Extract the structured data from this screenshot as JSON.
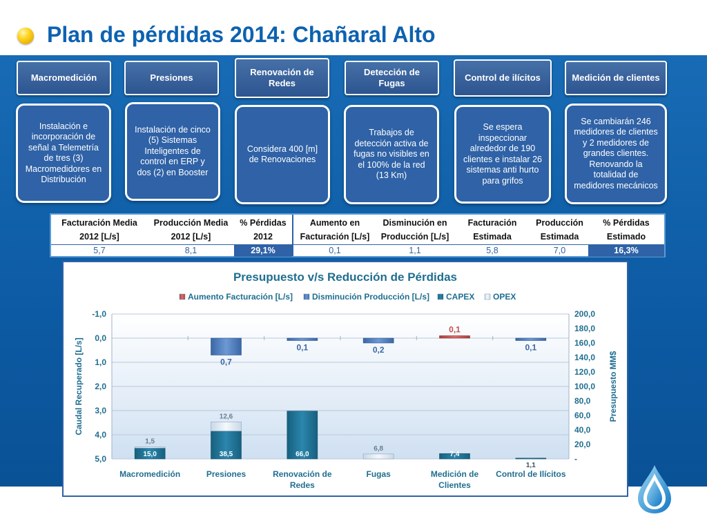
{
  "title": "Plan de pérdidas 2014: Chañaral Alto",
  "columns": [
    {
      "header": "Macromedición",
      "desc": "Instalación e incorporación de señal a Telemetría de tres (3) Macromedidores en Distribución"
    },
    {
      "header": "Presiones",
      "desc": "Instalación de cinco (5) Sistemas Inteligentes de control en ERP y dos (2) en Booster"
    },
    {
      "header": "Renovación de Redes",
      "desc": "Considera 400 [m] de Renovaciones"
    },
    {
      "header": "Detección de Fugas",
      "desc": "Trabajos de detección activa de fugas no visibles en el 100% de la red (13 Km)"
    },
    {
      "header": "Control de ilícitos",
      "desc": "Se espera inspeccionar alrededor de 190 clientes e instalar 26 sistemas anti hurto para grifos"
    },
    {
      "header": "Medición de clientes",
      "desc": "Se cambiarán 246 medidores de clientes y 2 medidores de grandes clientes. Renovando la totalidad de medidores mecánicos"
    }
  ],
  "table": {
    "headers": [
      [
        "Facturación Media",
        "2012 [L/s]"
      ],
      [
        "Producción Media",
        "2012 [L/s]"
      ],
      [
        "% Pérdidas",
        "2012"
      ],
      [
        "Aumento en",
        "Facturación [L/s]"
      ],
      [
        "Disminución en",
        "Producción [L/s]"
      ],
      [
        "Facturación",
        "Estimada"
      ],
      [
        "Producción",
        "Estimada"
      ],
      [
        "% Pérdidas",
        "Estimado"
      ]
    ],
    "values": [
      "5,7",
      "8,1",
      "29,1%",
      "0,1",
      "1,1",
      "5,8",
      "7,0",
      "16,3%"
    ]
  },
  "chart_data": {
    "type": "bar",
    "title": "Presupuesto v/s Reducción de Pérdidas",
    "categories": [
      "Macromedición",
      "Presiones",
      "Renovación de Redes",
      "Fugas",
      "Medición de Clientes",
      "Control de Ilícitos"
    ],
    "series": [
      {
        "name": "Aumento Facturación [L/s]",
        "axis": "left",
        "values": [
          null,
          null,
          null,
          null,
          0.1,
          null
        ],
        "labels": [
          "",
          "",
          "",
          "",
          "0,1",
          ""
        ]
      },
      {
        "name": "Disminución Producción [L/s]",
        "axis": "left",
        "values": [
          null,
          0.7,
          0.1,
          0.2,
          null,
          0.1
        ],
        "labels": [
          "",
          "0,7",
          "0,1",
          "0,2",
          "",
          "0,1"
        ]
      },
      {
        "name": "CAPEX",
        "axis": "right",
        "values": [
          15.0,
          38.5,
          66.0,
          null,
          7.4,
          1.1
        ],
        "labels": [
          "15,0",
          "38,5",
          "66,0",
          "",
          "7,4",
          "1,1"
        ]
      },
      {
        "name": "OPEX",
        "axis": "right",
        "values": [
          1.5,
          12.6,
          null,
          6.8,
          null,
          null
        ],
        "labels": [
          "1,5",
          "12,6",
          "",
          "6,8",
          "",
          ""
        ]
      }
    ],
    "ylabel": "Caudal Recuperado [L/s]",
    "y2label": "Presupuesto MM$",
    "ylim": [
      -1,
      5
    ],
    "y_inverted": true,
    "y2lim": [
      0,
      200
    ],
    "yticks": [
      "-1,0",
      "0,0",
      "1,0",
      "2,0",
      "3,0",
      "4,0",
      "5,0"
    ],
    "y2ticks": [
      "-",
      "20,0",
      "40,0",
      "60,0",
      "80,0",
      "100,0",
      "120,0",
      "140,0",
      "160,0",
      "180,0",
      "200,0"
    ],
    "legend": "top",
    "grid": true,
    "colors": {
      "aumento": "#c0504d",
      "disminucion": "#4f81bd",
      "capex": "#1f6e90",
      "opex": "#dde8f2"
    }
  }
}
